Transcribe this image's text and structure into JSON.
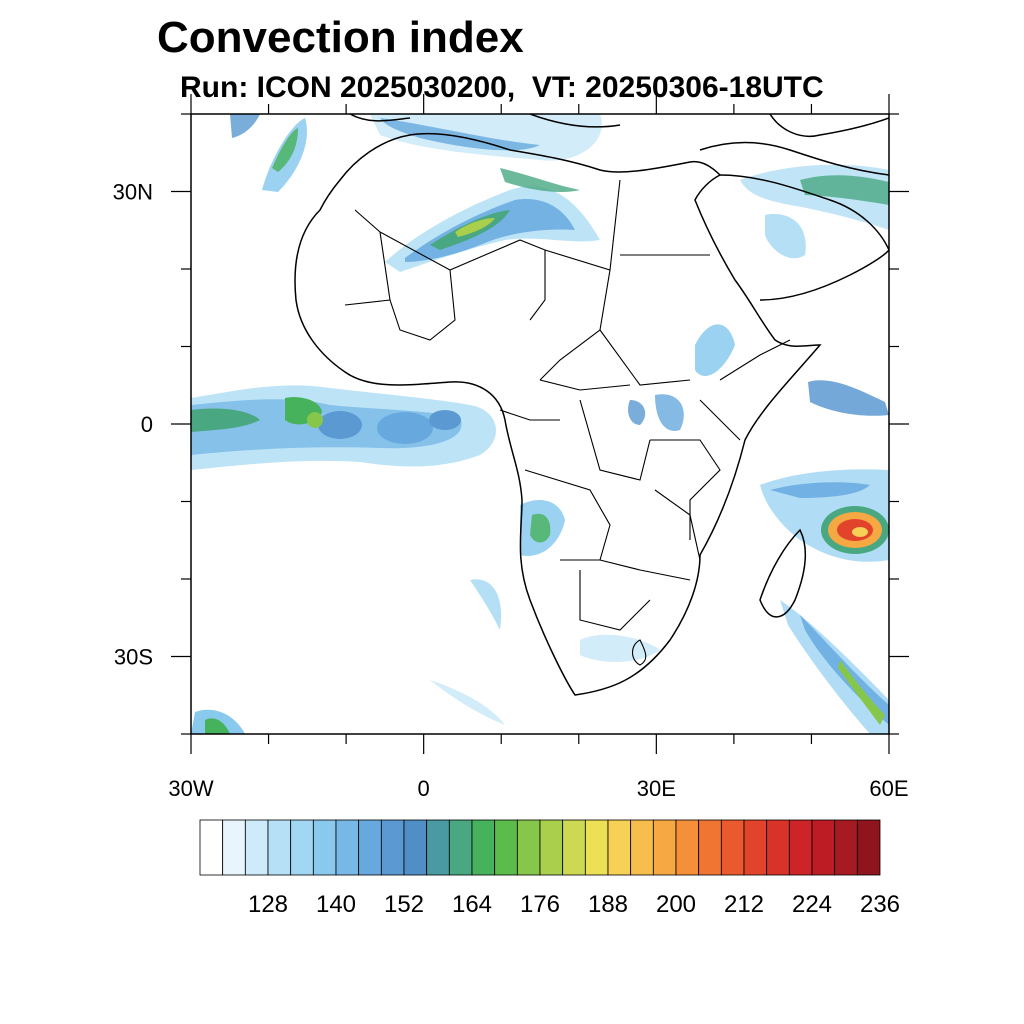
{
  "header": {
    "title": "Convection index",
    "subtitle": "Run: ICON 2025030200,  VT: 20250306-18UTC"
  },
  "map": {
    "lon_range": [
      -30,
      60
    ],
    "lat_range": [
      -40,
      40
    ],
    "lat_ticks": [
      {
        "value": 30,
        "label": "30N"
      },
      {
        "value": 0,
        "label": "0"
      },
      {
        "value": -30,
        "label": "30S"
      }
    ],
    "lon_ticks": [
      {
        "value": -30,
        "label": "30W"
      },
      {
        "value": 0,
        "label": "0"
      },
      {
        "value": 30,
        "label": "30E"
      },
      {
        "value": 60,
        "label": "60E"
      }
    ],
    "minor_step_deg": 10,
    "features": [
      "convection-band-sahara",
      "itcz-atlantic",
      "cyclone-madagascar",
      "mozambique-channel-band"
    ]
  },
  "chart_data": {
    "type": "heatmap",
    "title": "Convection index",
    "subtitle": "Run: ICON 2025030200,  VT: 20250306-18UTC",
    "xlim": [
      -30,
      60
    ],
    "ylim": [
      -40,
      40
    ],
    "colorbar": {
      "levels": [
        116,
        120,
        124,
        128,
        132,
        136,
        140,
        144,
        148,
        152,
        156,
        160,
        164,
        168,
        172,
        176,
        180,
        184,
        188,
        192,
        196,
        200,
        204,
        208,
        212,
        216,
        220,
        224,
        228,
        232,
        236,
        240
      ],
      "labeled": [
        {
          "value": 128,
          "label": "128"
        },
        {
          "value": 140,
          "label": "140"
        },
        {
          "value": 152,
          "label": "152"
        },
        {
          "value": 164,
          "label": "164"
        },
        {
          "value": 176,
          "label": "176"
        },
        {
          "value": 188,
          "label": "188"
        },
        {
          "value": 200,
          "label": "200"
        },
        {
          "value": 212,
          "label": "212"
        },
        {
          "value": 224,
          "label": "224"
        },
        {
          "value": 236,
          "label": "236"
        }
      ],
      "colors": [
        "#ffffff",
        "#e8f5fc",
        "#cdebf8",
        "#b6e0f6",
        "#a2d7f3",
        "#8ac9ee",
        "#78b8e6",
        "#67a9df",
        "#5a99d2",
        "#4f8fc5",
        "#4a9aa4",
        "#49a882",
        "#46b25c",
        "#5bbb4b",
        "#86c64a",
        "#a9cf4c",
        "#cdd952",
        "#ece055",
        "#f6d155",
        "#f7be4e",
        "#f6a843",
        "#f48f3a",
        "#f07532",
        "#ea5a2e",
        "#e2432b",
        "#d83229",
        "#cc2428",
        "#bd1c25",
        "#a81a22",
        "#8e151d"
      ]
    }
  }
}
